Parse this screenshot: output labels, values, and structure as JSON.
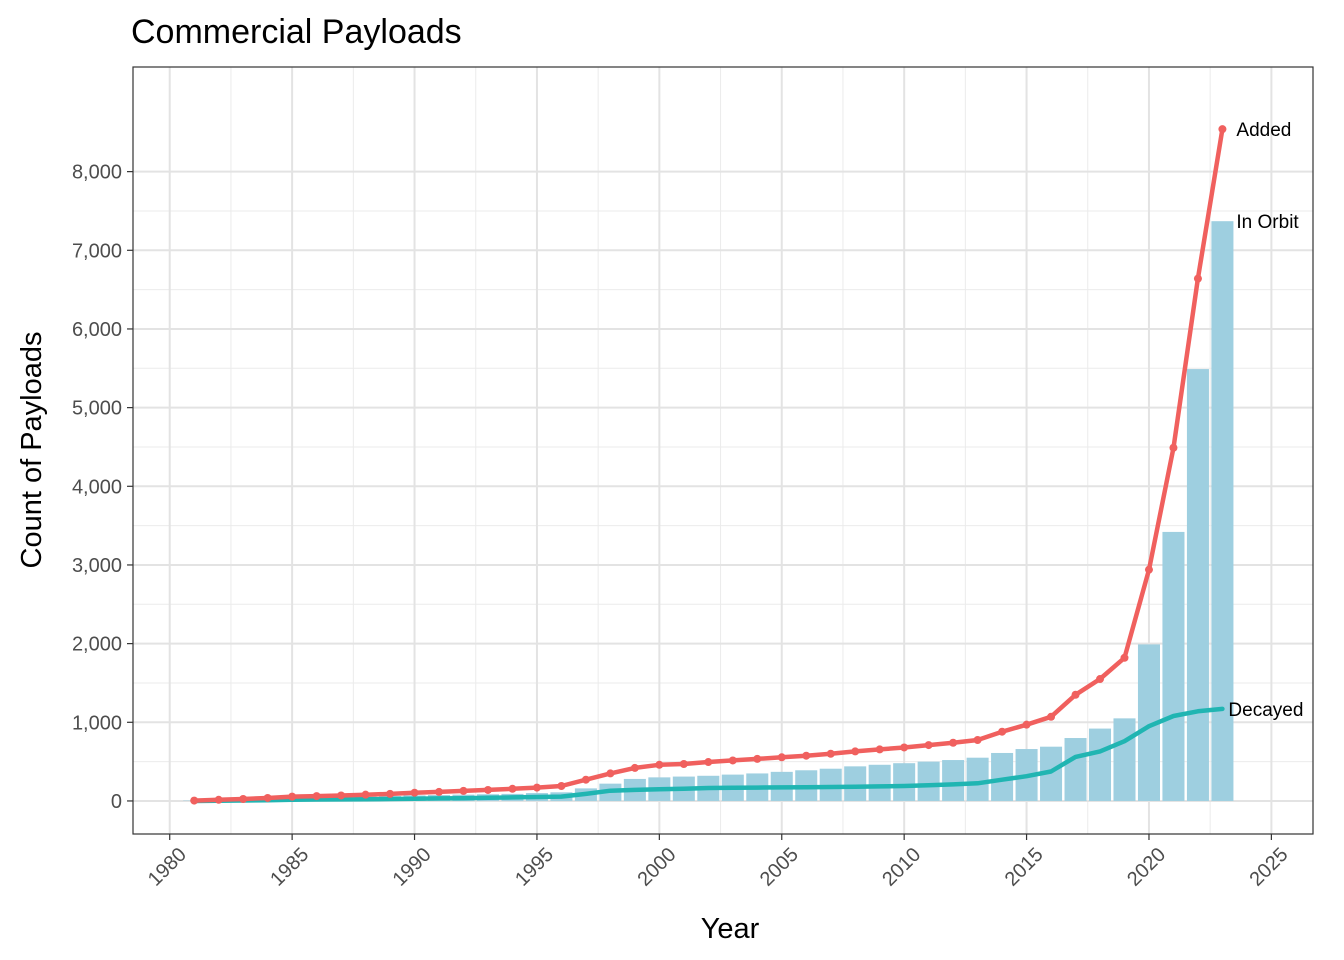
{
  "chart_data": {
    "type": "bar+line",
    "title": "Commercial Payloads",
    "xlabel": "Year",
    "ylabel": "Count of Payloads",
    "xlim": [
      1978.5,
      2026.7
    ],
    "ylim": [
      -420,
      9330
    ],
    "x_ticks": [
      1980,
      1985,
      1990,
      1995,
      2000,
      2005,
      2010,
      2015,
      2020,
      2025
    ],
    "y_ticks": [
      0,
      1000,
      2000,
      3000,
      4000,
      5000,
      6000,
      7000,
      8000
    ],
    "y_tick_labels": [
      "0",
      "1,000",
      "2,000",
      "3,000",
      "4,000",
      "5,000",
      "6,000",
      "7,000",
      "8,000"
    ],
    "grid": true,
    "legend": "none (direct labels)",
    "x": [
      1981,
      1982,
      1983,
      1984,
      1985,
      1986,
      1987,
      1988,
      1989,
      1990,
      1991,
      1992,
      1993,
      1994,
      1995,
      1996,
      1997,
      1998,
      1999,
      2000,
      2001,
      2002,
      2003,
      2004,
      2005,
      2006,
      2007,
      2008,
      2009,
      2010,
      2011,
      2012,
      2013,
      2014,
      2015,
      2016,
      2017,
      2018,
      2019,
      2020,
      2021,
      2022,
      2023
    ],
    "series": [
      {
        "name": "In Orbit",
        "kind": "bar",
        "color": "#9ecfe0",
        "values": [
          5,
          12,
          18,
          25,
          35,
          42,
          48,
          55,
          62,
          70,
          75,
          80,
          85,
          90,
          100,
          110,
          160,
          220,
          280,
          300,
          310,
          320,
          335,
          350,
          370,
          390,
          410,
          440,
          460,
          480,
          500,
          520,
          550,
          610,
          660,
          690,
          800,
          920,
          1050,
          1990,
          3420,
          5490,
          7370
        ]
      },
      {
        "name": "Added",
        "kind": "line",
        "color": "#f0605e",
        "markers": true,
        "values": [
          5,
          15,
          25,
          38,
          55,
          62,
          70,
          80,
          90,
          105,
          115,
          128,
          140,
          155,
          170,
          190,
          270,
          350,
          420,
          460,
          470,
          495,
          515,
          535,
          555,
          575,
          600,
          630,
          655,
          680,
          710,
          740,
          775,
          880,
          970,
          1070,
          1350,
          1550,
          1820,
          2940,
          4490,
          6640,
          8540
        ]
      },
      {
        "name": "Decayed",
        "kind": "line",
        "color": "#20b5b2",
        "markers": false,
        "values": [
          0,
          3,
          6,
          10,
          15,
          18,
          20,
          22,
          25,
          28,
          32,
          35,
          40,
          45,
          50,
          55,
          90,
          130,
          140,
          150,
          155,
          165,
          168,
          170,
          172,
          175,
          178,
          180,
          185,
          190,
          200,
          210,
          225,
          270,
          315,
          375,
          560,
          630,
          760,
          950,
          1080,
          1140,
          1170
        ]
      }
    ]
  }
}
